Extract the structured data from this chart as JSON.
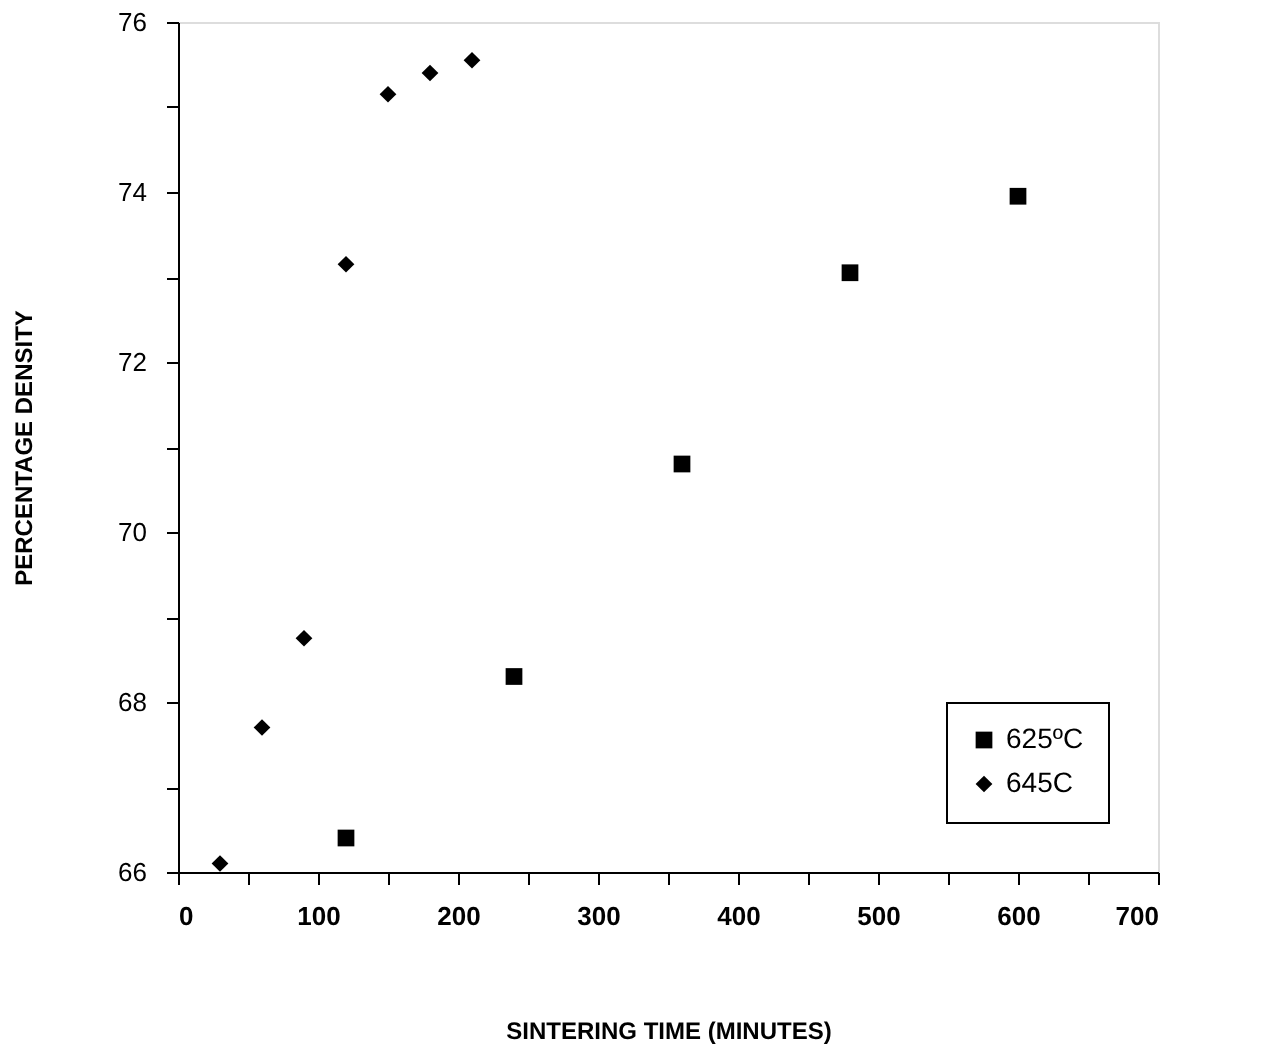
{
  "chart_data": {
    "type": "scatter",
    "xlabel": "SINTERING TIME (MINUTES)",
    "ylabel": "PERCENTAGE DENSITY",
    "xlim": [
      0,
      700
    ],
    "ylim": [
      66,
      76
    ],
    "xticks": [
      0,
      {
        "value": 50,
        "label": null
      },
      100,
      {
        "value": 150,
        "label": null
      },
      200,
      {
        "value": 250,
        "label": null
      },
      300,
      {
        "value": 350,
        "label": null
      },
      400,
      {
        "value": 450,
        "label": null
      },
      500,
      {
        "value": 550,
        "label": null
      },
      600,
      {
        "value": 650,
        "label": null
      },
      700
    ],
    "yticks": [
      66,
      {
        "value": 67,
        "label": null
      },
      68,
      {
        "value": 69,
        "label": null
      },
      70,
      {
        "value": 71,
        "label": null
      },
      72,
      {
        "value": 73,
        "label": null
      },
      74,
      {
        "value": 75,
        "label": null
      },
      76
    ],
    "grid": false,
    "legend": "bottom right",
    "series": [
      {
        "name": "625ºC",
        "color": "#000000",
        "marker": "square",
        "x": [
          120,
          240,
          360,
          480,
          600
        ],
        "values": [
          66.4,
          68.3,
          70.8,
          73.05,
          73.95
        ]
      },
      {
        "name": "645C",
        "color": "#000000",
        "marker": "diamond",
        "x": [
          30,
          60,
          90,
          120,
          150,
          180,
          210
        ],
        "values": [
          66.1,
          67.7,
          68.75,
          73.15,
          75.15,
          75.4,
          75.55
        ]
      }
    ]
  }
}
